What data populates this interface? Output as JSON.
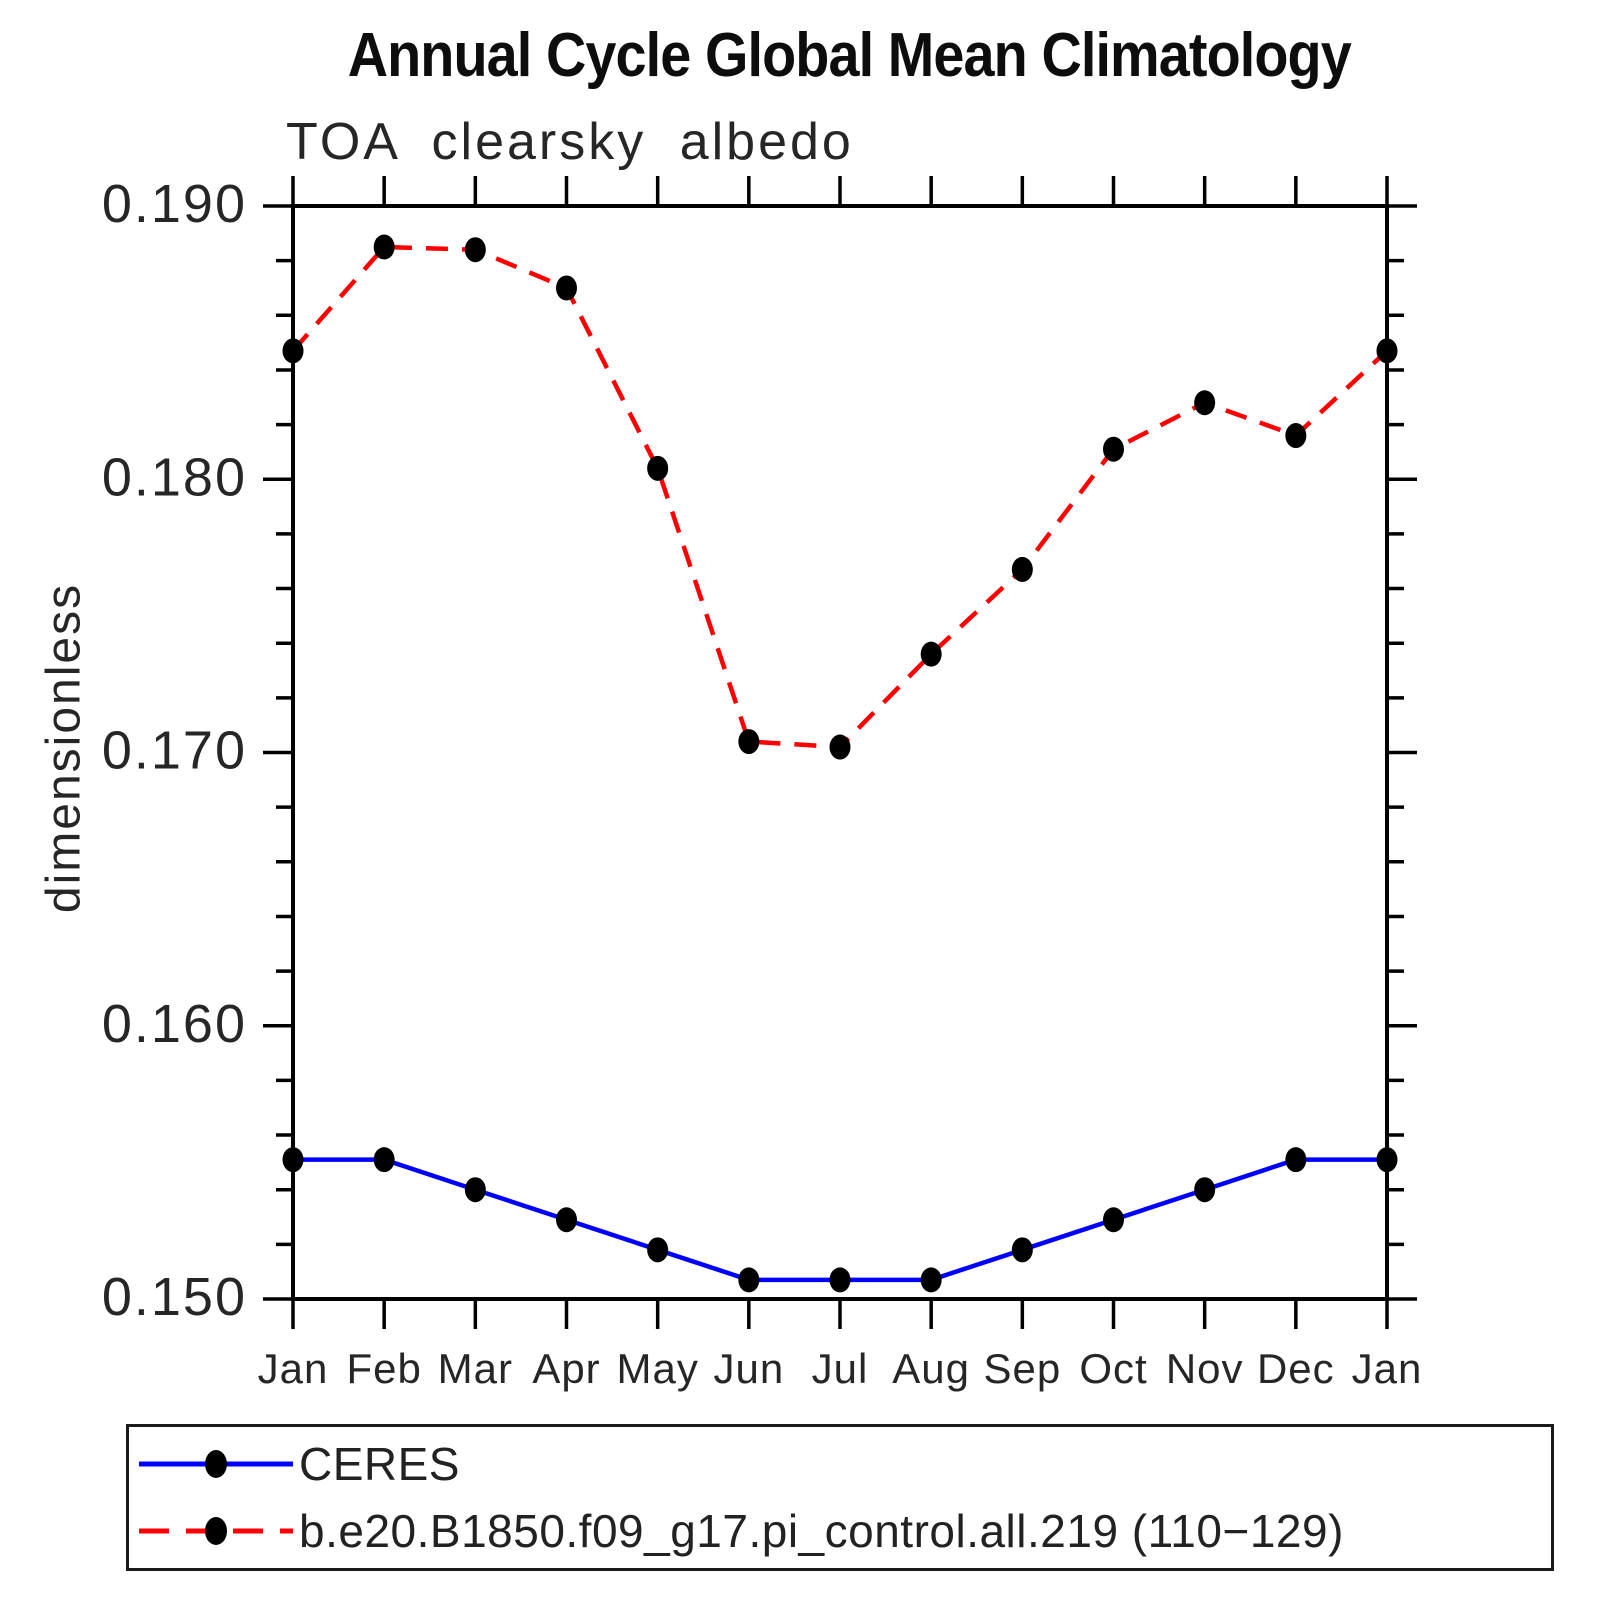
{
  "title": "Annual Cycle Global Mean Climatology",
  "subtitle": "TOA clearsky albedo",
  "ylabel": "dimensionless",
  "legend": [
    {
      "label": "CERES",
      "color": "#0000ff",
      "dashed": false
    },
    {
      "label": "b.e20.B1850.f09_g17.pi_control.all.219 (110−129)",
      "color": "#ff0000",
      "dashed": true
    }
  ],
  "colors": {
    "axis": "#000000",
    "marker": "#000000",
    "ceres_line": "#0000ff",
    "model_line": "#ff0000"
  },
  "chart_data": {
    "type": "line",
    "categories": [
      "Jan",
      "Feb",
      "Mar",
      "Apr",
      "May",
      "Jun",
      "Jul",
      "Aug",
      "Sep",
      "Oct",
      "Nov",
      "Dec",
      "Jan"
    ],
    "series": [
      {
        "name": "CERES",
        "color": "#0000ff",
        "dashed": false,
        "values": [
          0.1551,
          0.1551,
          0.154,
          0.1529,
          0.1518,
          0.1507,
          0.1507,
          0.1507,
          0.1518,
          0.1529,
          0.154,
          0.1551,
          0.1551
        ]
      },
      {
        "name": "b.e20.B1850.f09_g17.pi_control.all.219 (110-129)",
        "color": "#ff0000",
        "dashed": true,
        "values": [
          0.1847,
          0.1885,
          0.1884,
          0.187,
          0.1804,
          0.1704,
          0.1702,
          0.1736,
          0.1767,
          0.1811,
          0.1828,
          0.1816,
          0.1847
        ]
      }
    ],
    "title": "Annual Cycle Global Mean Climatology",
    "subtitle": "TOA clearsky albedo",
    "xlabel": "",
    "ylabel": "dimensionless",
    "ylim": [
      0.15,
      0.19
    ],
    "ytick_major_step": 0.01,
    "ytick_minor_step": 0.002,
    "ytick_labels": [
      "0.150",
      "0.160",
      "0.170",
      "0.180",
      "0.190"
    ],
    "grid": false,
    "legend_position": "bottom"
  }
}
